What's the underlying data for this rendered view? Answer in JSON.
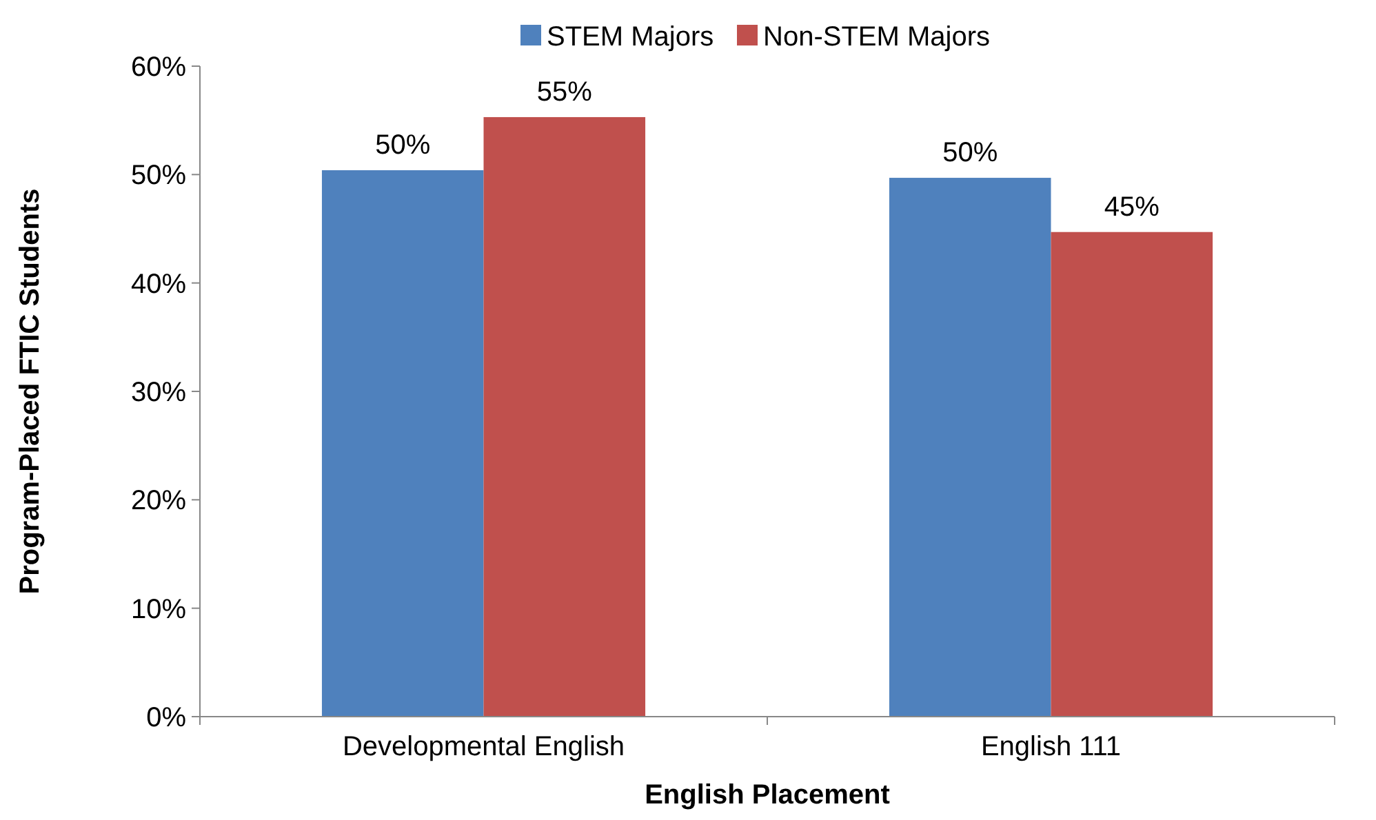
{
  "chart_data": {
    "type": "bar",
    "xlabel": "English Placement",
    "ylabel": "Program-Placed FTIC Students",
    "categories": [
      "Developmental English",
      "English 111"
    ],
    "series": [
      {
        "name": "STEM Majors",
        "color": "#4f81bd",
        "values": [
          50.4,
          49.7
        ],
        "value_labels": [
          "50%",
          "50%"
        ]
      },
      {
        "name": "Non-STEM Majors",
        "color": "#c0504d",
        "values": [
          55.3,
          44.7
        ],
        "value_labels": [
          "55%",
          "45%"
        ]
      }
    ],
    "ylim": [
      0,
      60
    ],
    "yticks": [
      {
        "value": 0,
        "label": "0%"
      },
      {
        "value": 10,
        "label": "10%"
      },
      {
        "value": 20,
        "label": "20%"
      },
      {
        "value": 30,
        "label": "30%"
      },
      {
        "value": 40,
        "label": "40%"
      },
      {
        "value": 50,
        "label": "50%"
      },
      {
        "value": 60,
        "label": "60%"
      }
    ],
    "grid": false,
    "legend": "top"
  }
}
